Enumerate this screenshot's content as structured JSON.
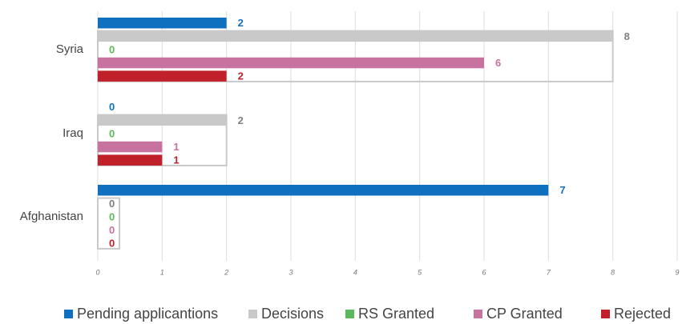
{
  "chart_data": {
    "type": "bar",
    "orientation": "horizontal",
    "categories": [
      "Syria",
      "Iraq",
      "Afghanistan"
    ],
    "series": [
      {
        "name": "Pending applicantions",
        "color": "#1070c0",
        "values": [
          2,
          0,
          7
        ]
      },
      {
        "name": "Decisions",
        "color": "#c9c9c9",
        "values": [
          8,
          2,
          0
        ]
      },
      {
        "name": "RS Granted",
        "color": "#5cb85c",
        "values": [
          0,
          0,
          0
        ]
      },
      {
        "name": "CP Granted",
        "color": "#c8739f",
        "values": [
          6,
          1,
          0
        ]
      },
      {
        "name": "Rejected",
        "color": "#c0202a",
        "values": [
          2,
          1,
          0
        ]
      }
    ],
    "xlim": [
      0,
      9
    ],
    "xticks": [
      0,
      1,
      2,
      3,
      4,
      5,
      6,
      7,
      8,
      9
    ],
    "grid": true,
    "legend": "bottom"
  }
}
